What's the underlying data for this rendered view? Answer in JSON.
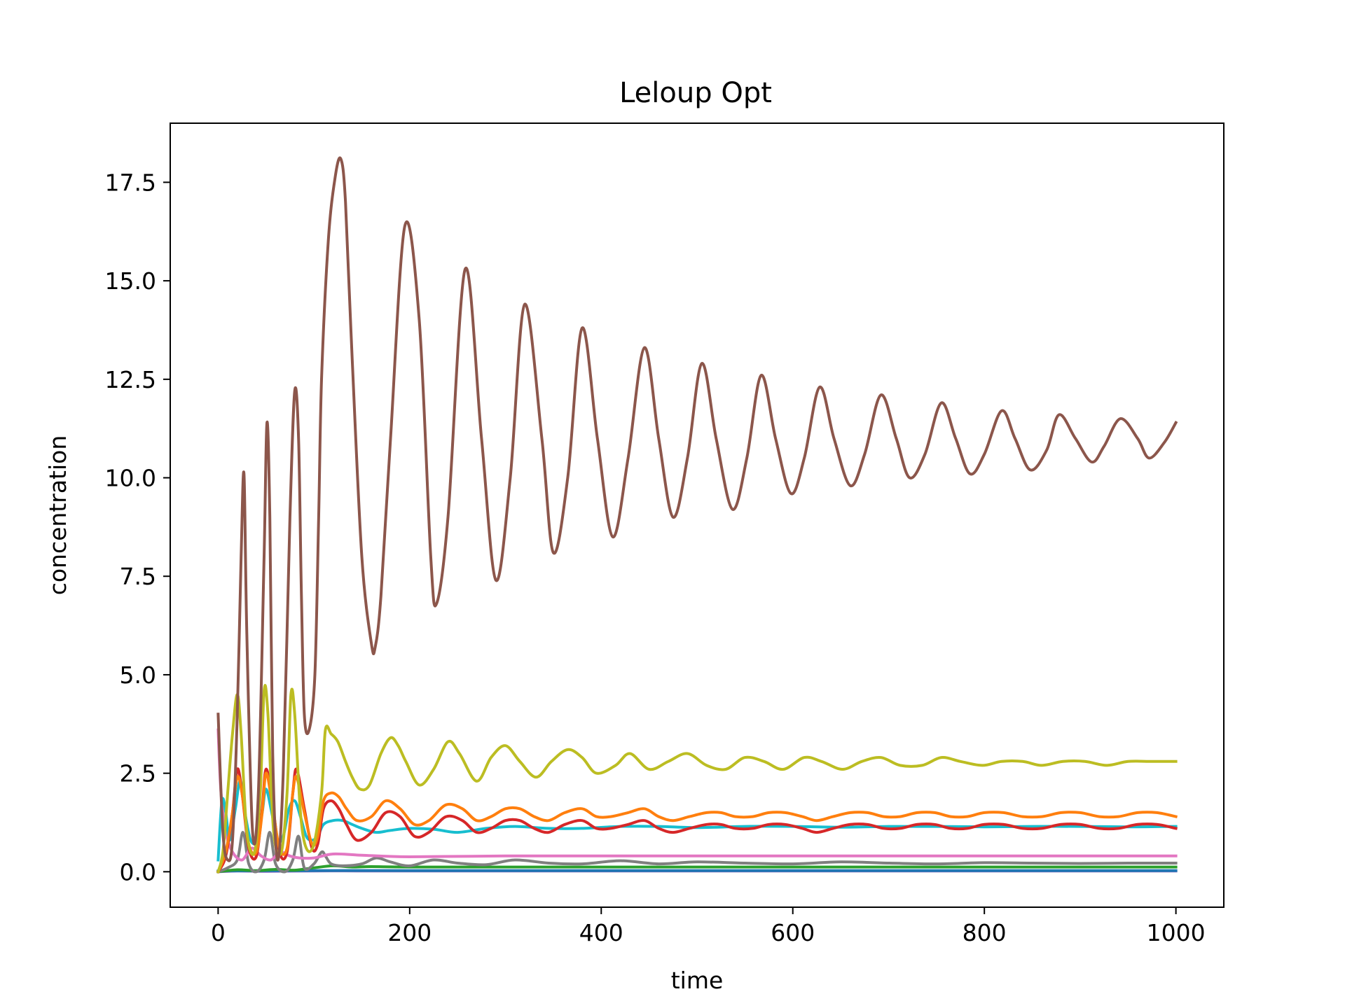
{
  "chart_data": {
    "type": "line",
    "title": "Leloup Opt",
    "xlabel": "time",
    "ylabel": "concentration",
    "xlim": [
      -50,
      1050
    ],
    "ylim": [
      -0.9,
      19.0
    ],
    "x_ticks": [
      "0",
      "200",
      "400",
      "600",
      "800",
      "1000"
    ],
    "y_ticks": [
      "0.0",
      "2.5",
      "5.0",
      "7.5",
      "10.0",
      "12.5",
      "15.0",
      "17.5"
    ],
    "grid": false,
    "legend": "none",
    "series": [
      {
        "color": "#8c564b",
        "x": [
          0,
          5,
          10,
          15,
          20,
          24,
          27,
          30,
          36,
          42,
          48,
          51,
          54,
          57,
          62,
          68,
          75,
          80,
          84,
          87,
          90,
          95,
          101,
          105,
          108,
          115,
          122,
          128,
          133,
          140,
          150,
          160,
          164,
          170,
          180,
          195,
          210,
          222,
          228,
          240,
          258,
          275,
          290,
          305,
          320,
          338,
          350,
          365,
          380,
          396,
          412,
          428,
          445,
          460,
          475,
          490,
          505,
          520,
          537,
          552,
          567,
          582,
          598,
          612,
          628,
          643,
          660,
          675,
          692,
          708,
          722,
          738,
          755,
          770,
          785,
          800,
          818,
          832,
          848,
          865,
          878,
          895,
          912,
          925,
          942,
          960,
          972,
          988,
          1000
        ],
        "y": [
          4.0,
          1.0,
          0.3,
          0.8,
          4.0,
          8.0,
          10.1,
          6.0,
          1.0,
          2.0,
          8.0,
          11.4,
          9.0,
          3.0,
          0.3,
          2.5,
          9.0,
          12.2,
          11.0,
          7.0,
          4.0,
          3.6,
          5.0,
          9.0,
          12.5,
          16.0,
          17.6,
          18.1,
          17.0,
          13.0,
          8.0,
          5.8,
          5.7,
          7.0,
          11.0,
          16.4,
          14.0,
          8.0,
          6.8,
          9.0,
          15.3,
          11.0,
          7.4,
          10.0,
          14.4,
          11.0,
          8.1,
          10.0,
          13.8,
          11.0,
          8.5,
          10.5,
          13.3,
          11.0,
          9.0,
          10.5,
          12.9,
          11.0,
          9.2,
          10.5,
          12.6,
          11.0,
          9.6,
          10.5,
          12.3,
          11.0,
          9.8,
          10.6,
          12.1,
          11.0,
          10.0,
          10.6,
          11.9,
          11.0,
          10.1,
          10.6,
          11.7,
          11.0,
          10.2,
          10.7,
          11.6,
          11.0,
          10.4,
          10.8,
          11.5,
          11.0,
          10.5,
          10.9,
          11.4
        ]
      },
      {
        "color": "#bcbd22",
        "x": [
          0,
          5,
          10,
          15,
          20,
          24,
          30,
          38,
          44,
          48,
          52,
          58,
          66,
          72,
          76,
          80,
          86,
          92,
          100,
          108,
          112,
          118,
          125,
          133,
          140,
          148,
          158,
          170,
          180,
          188,
          196,
          210,
          225,
          240,
          252,
          270,
          285,
          300,
          315,
          332,
          348,
          365,
          380,
          395,
          415,
          430,
          450,
          470,
          490,
          510,
          530,
          550,
          570,
          590,
          612,
          630,
          652,
          672,
          692,
          712,
          735,
          755,
          775,
          798,
          818,
          840,
          860,
          882,
          905,
          928,
          950,
          975,
          1000
        ],
        "y": [
          0.0,
          0.5,
          2.0,
          3.5,
          4.5,
          3.5,
          1.0,
          0.5,
          2.0,
          4.6,
          4.0,
          1.0,
          0.5,
          2.0,
          4.5,
          4.0,
          1.5,
          0.6,
          0.7,
          2.0,
          3.6,
          3.5,
          3.3,
          2.8,
          2.4,
          2.1,
          2.2,
          3.0,
          3.4,
          3.2,
          2.8,
          2.2,
          2.6,
          3.3,
          3.0,
          2.3,
          2.9,
          3.2,
          2.8,
          2.4,
          2.8,
          3.1,
          2.9,
          2.5,
          2.7,
          3.0,
          2.6,
          2.8,
          3.0,
          2.7,
          2.6,
          2.9,
          2.8,
          2.6,
          2.9,
          2.8,
          2.6,
          2.8,
          2.9,
          2.7,
          2.7,
          2.9,
          2.8,
          2.7,
          2.8,
          2.8,
          2.7,
          2.8,
          2.8,
          2.7,
          2.8,
          2.8,
          2.8
        ]
      },
      {
        "color": "#ff7f0e",
        "x": [
          0,
          8,
          15,
          20,
          25,
          32,
          40,
          46,
          50,
          56,
          64,
          72,
          78,
          82,
          90,
          98,
          104,
          110,
          118,
          126,
          134,
          145,
          160,
          175,
          190,
          205,
          220,
          238,
          255,
          270,
          285,
          300,
          315,
          330,
          345,
          362,
          380,
          395,
          410,
          428,
          445,
          460,
          475,
          492,
          510,
          525,
          540,
          558,
          575,
          592,
          610,
          625,
          642,
          660,
          678,
          695,
          712,
          730,
          748,
          765,
          782,
          800,
          820,
          840,
          860,
          880,
          900,
          920,
          940,
          960,
          980,
          1000
        ],
        "y": [
          0.0,
          0.5,
          1.5,
          2.4,
          2.0,
          0.7,
          0.5,
          1.5,
          2.5,
          1.8,
          0.6,
          0.6,
          2.0,
          2.4,
          1.5,
          0.7,
          0.9,
          1.8,
          2.0,
          1.9,
          1.6,
          1.3,
          1.4,
          1.8,
          1.6,
          1.2,
          1.3,
          1.7,
          1.6,
          1.3,
          1.4,
          1.6,
          1.6,
          1.4,
          1.3,
          1.5,
          1.6,
          1.4,
          1.4,
          1.5,
          1.6,
          1.4,
          1.3,
          1.4,
          1.5,
          1.5,
          1.4,
          1.4,
          1.5,
          1.5,
          1.4,
          1.3,
          1.4,
          1.5,
          1.5,
          1.4,
          1.4,
          1.5,
          1.5,
          1.4,
          1.4,
          1.5,
          1.5,
          1.4,
          1.4,
          1.5,
          1.5,
          1.4,
          1.4,
          1.5,
          1.5,
          1.4
        ]
      },
      {
        "color": "#d62728",
        "x": [
          0,
          8,
          15,
          20,
          25,
          32,
          40,
          46,
          50,
          56,
          64,
          72,
          78,
          82,
          90,
          98,
          104,
          110,
          118,
          126,
          134,
          145,
          160,
          175,
          190,
          205,
          220,
          238,
          255,
          270,
          285,
          300,
          315,
          330,
          345,
          362,
          380,
          395,
          410,
          428,
          445,
          460,
          475,
          492,
          510,
          525,
          540,
          558,
          575,
          592,
          610,
          625,
          642,
          660,
          678,
          695,
          712,
          730,
          748,
          765,
          782,
          800,
          820,
          840,
          860,
          880,
          900,
          920,
          940,
          960,
          980,
          1000
        ],
        "y": [
          0.0,
          0.4,
          1.5,
          2.6,
          2.0,
          0.6,
          0.4,
          1.6,
          2.6,
          1.9,
          0.5,
          0.5,
          2.0,
          2.6,
          1.6,
          0.6,
          0.7,
          1.6,
          1.8,
          1.6,
          1.2,
          0.8,
          1.0,
          1.5,
          1.4,
          0.9,
          1.0,
          1.4,
          1.3,
          1.0,
          1.1,
          1.3,
          1.3,
          1.1,
          1.0,
          1.2,
          1.3,
          1.1,
          1.1,
          1.2,
          1.3,
          1.1,
          1.0,
          1.1,
          1.2,
          1.2,
          1.1,
          1.1,
          1.2,
          1.2,
          1.1,
          1.0,
          1.1,
          1.2,
          1.2,
          1.1,
          1.1,
          1.2,
          1.2,
          1.1,
          1.1,
          1.2,
          1.2,
          1.1,
          1.1,
          1.2,
          1.2,
          1.1,
          1.1,
          1.2,
          1.2,
          1.1
        ]
      },
      {
        "color": "#17becf",
        "x": [
          0,
          4,
          8,
          12,
          18,
          23,
          28,
          34,
          40,
          46,
          50,
          56,
          62,
          68,
          74,
          80,
          86,
          92,
          98,
          104,
          110,
          120,
          130,
          140,
          150,
          165,
          180,
          200,
          225,
          250,
          280,
          310,
          345,
          380,
          420,
          460,
          500,
          550,
          600,
          650,
          700,
          750,
          800,
          850,
          900,
          950,
          1000
        ],
        "y": [
          0.3,
          1.8,
          1.5,
          0.8,
          1.6,
          2.3,
          1.5,
          0.8,
          0.8,
          1.5,
          2.1,
          1.5,
          0.8,
          0.9,
          1.6,
          1.8,
          1.4,
          0.9,
          0.8,
          0.9,
          1.2,
          1.3,
          1.3,
          1.2,
          1.1,
          1.0,
          1.05,
          1.1,
          1.08,
          1.0,
          1.1,
          1.15,
          1.1,
          1.1,
          1.15,
          1.15,
          1.12,
          1.15,
          1.15,
          1.13,
          1.15,
          1.15,
          1.14,
          1.15,
          1.15,
          1.14,
          1.15
        ]
      },
      {
        "color": "#e377c2",
        "x": [
          0,
          3,
          8,
          15,
          25,
          35,
          45,
          55,
          65,
          75,
          85,
          100,
          120,
          150,
          200,
          300,
          400,
          500,
          600,
          700,
          800,
          900,
          1000
        ],
        "y": [
          3.6,
          2.0,
          1.0,
          0.5,
          0.3,
          0.6,
          0.4,
          0.3,
          0.5,
          0.4,
          0.35,
          0.35,
          0.45,
          0.42,
          0.38,
          0.4,
          0.4,
          0.4,
          0.4,
          0.4,
          0.4,
          0.4,
          0.4
        ]
      },
      {
        "color": "#7f7f7f",
        "x": [
          0,
          10,
          20,
          26,
          32,
          40,
          48,
          54,
          60,
          70,
          78,
          84,
          90,
          100,
          108,
          112,
          118,
          130,
          150,
          165,
          180,
          200,
          225,
          250,
          280,
          310,
          345,
          380,
          420,
          460,
          500,
          550,
          600,
          650,
          700,
          750,
          800,
          850,
          900,
          950,
          1000
        ],
        "y": [
          0.0,
          0.1,
          0.3,
          1.0,
          0.2,
          0.0,
          0.3,
          1.0,
          0.2,
          0.0,
          0.3,
          0.9,
          0.1,
          0.2,
          0.5,
          0.4,
          0.2,
          0.15,
          0.2,
          0.35,
          0.25,
          0.15,
          0.3,
          0.22,
          0.18,
          0.3,
          0.22,
          0.2,
          0.28,
          0.2,
          0.25,
          0.22,
          0.2,
          0.25,
          0.22,
          0.2,
          0.23,
          0.22,
          0.21,
          0.22,
          0.22
        ]
      },
      {
        "color": "#2ca02c",
        "x": [
          0,
          20,
          40,
          60,
          80,
          100,
          120,
          140,
          160,
          200,
          300,
          400,
          500,
          600,
          700,
          800,
          900,
          1000
        ],
        "y": [
          0.0,
          0.05,
          0.03,
          0.06,
          0.04,
          0.1,
          0.15,
          0.12,
          0.13,
          0.12,
          0.12,
          0.12,
          0.12,
          0.12,
          0.12,
          0.12,
          0.12,
          0.12
        ]
      },
      {
        "color": "#1f77b4",
        "x": [
          0,
          100,
          200,
          400,
          600,
          800,
          1000
        ],
        "y": [
          0.02,
          0.03,
          0.03,
          0.03,
          0.03,
          0.03,
          0.03
        ]
      },
      {
        "color": "#9467bd",
        "x": [
          0,
          20,
          50,
          100,
          150,
          200,
          400,
          600,
          800,
          1000
        ],
        "y": [
          0.0,
          0.02,
          0.01,
          0.02,
          0.02,
          0.02,
          0.02,
          0.02,
          0.02,
          0.02
        ]
      }
    ]
  }
}
